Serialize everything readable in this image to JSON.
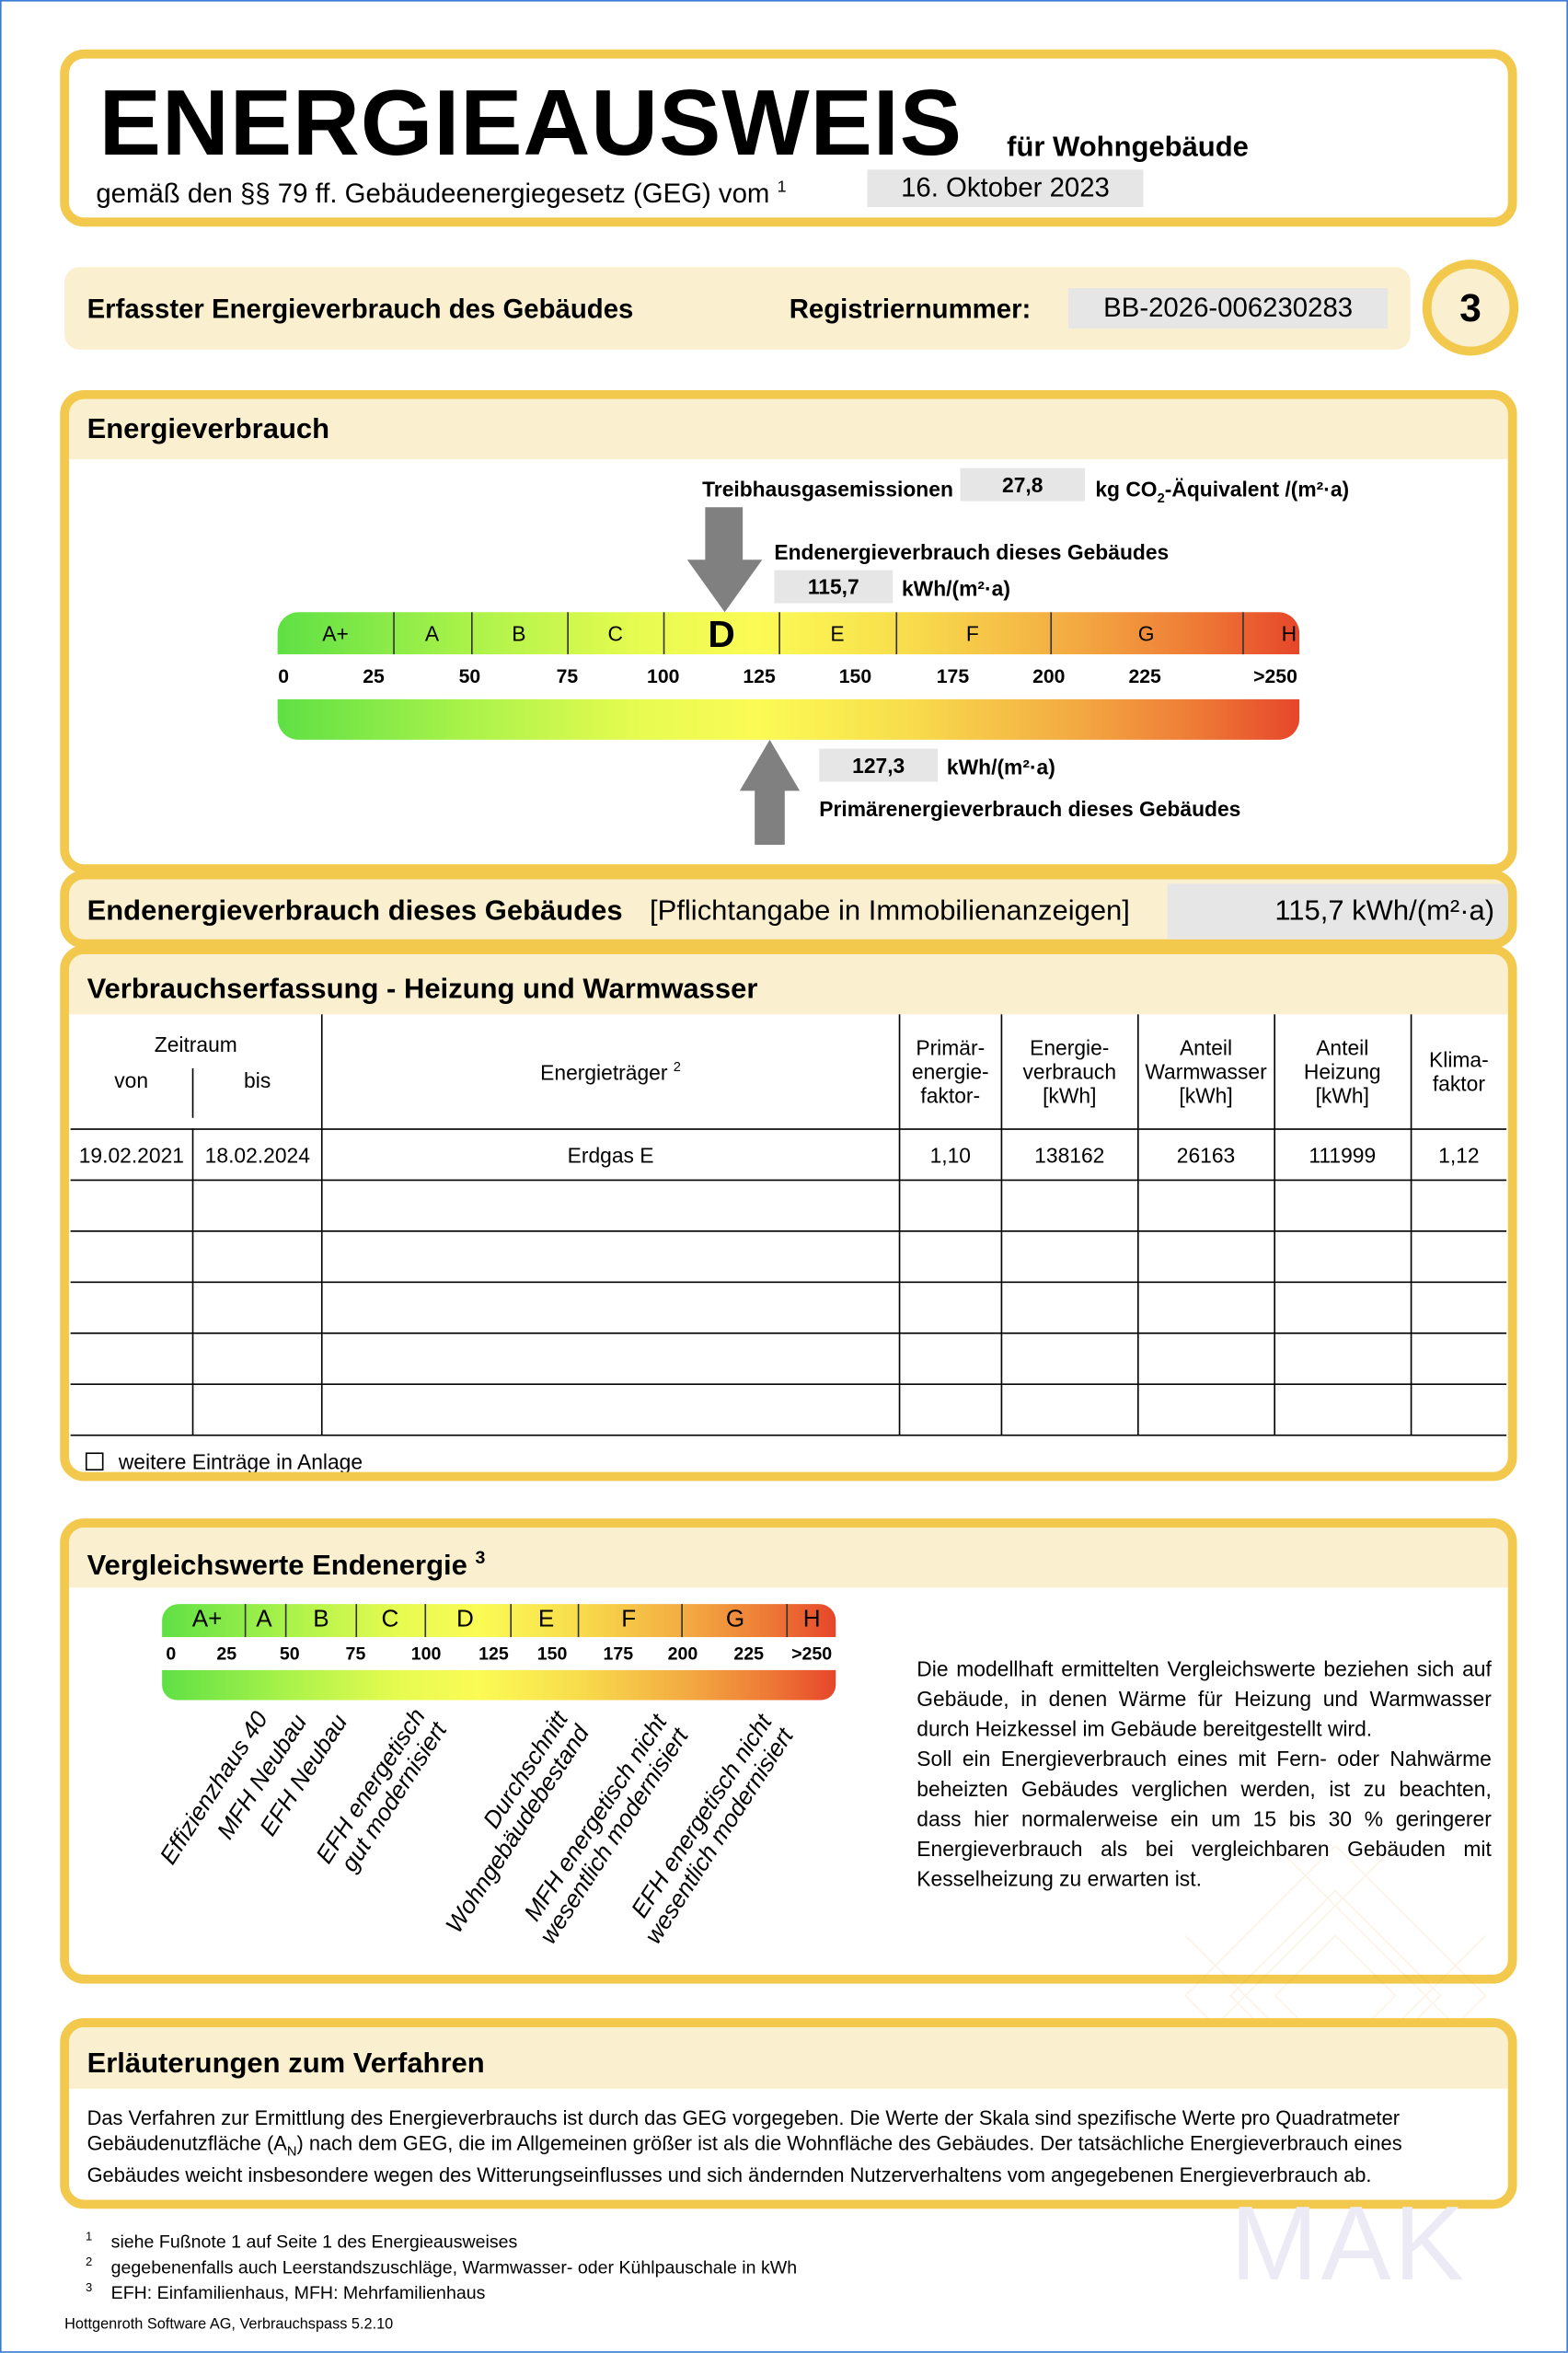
{
  "header": {
    "title": "ENERGIEAUSWEIS",
    "subtitle": "für Wohngebäude",
    "law_text": "gemäß den §§ 79 ff. Gebäudeenergiegesetz (GEG) vom",
    "law_footnote": "1",
    "date": "16. Oktober 2023"
  },
  "info": {
    "label": "Erfasster Energieverbrauch des Gebäudes",
    "reg_label": "Registriernummer:",
    "reg_number": "BB-2026-006230283",
    "page_number": "3"
  },
  "energy": {
    "title": "Energieverbrauch",
    "ghg_label": "Treibhausgasemissionen",
    "ghg_value": "27,8",
    "ghg_unit_pre": "kg CO",
    "ghg_unit_sub": "2",
    "ghg_unit_post": "-Äquivalent /(m²·a)",
    "final_label": "Endenergieverbrauch dieses Gebäudes",
    "final_value": "115,7",
    "final_value_num": 115.7,
    "unit": "kWh/(m²·a)",
    "primary_label": "Primärenergieverbrauch dieses Gebäudes",
    "primary_value": "127,3",
    "primary_value_num": 127.3,
    "classes": [
      "A+",
      "A",
      "B",
      "C",
      "D",
      "E",
      "F",
      "G",
      "H"
    ],
    "current_class": "D",
    "ticks": [
      "0",
      "25",
      "50",
      "75",
      "100",
      "125",
      "150",
      "175",
      "200",
      "225",
      ">250"
    ]
  },
  "mandatory": {
    "label": "Endenergieverbrauch dieses Gebäudes",
    "note": "[Pflichtangabe in Immobilienanzeigen]",
    "value": "115,7 kWh/(m²·a)"
  },
  "consumption": {
    "title": "Verbrauchserfassung - Heizung und Warmwasser",
    "headers": {
      "period": "Zeitraum",
      "from": "von",
      "to": "bis",
      "carrier": "Energieträger",
      "carrier_fn": "2",
      "pef": [
        "Primär-",
        "energie-",
        "faktor-"
      ],
      "consumption": [
        "Energie-",
        "verbrauch",
        "[kWh]"
      ],
      "hot_water": [
        "Anteil",
        "Warmwasser",
        "[kWh]"
      ],
      "heating": [
        "Anteil",
        "Heizung",
        "[kWh]"
      ],
      "climate": [
        "Klima-",
        "faktor"
      ]
    },
    "rows": [
      [
        "19.02.2021",
        "18.02.2024",
        "Erdgas E",
        "1,10",
        "138162",
        "26163",
        "111999",
        "1,12"
      ]
    ],
    "more_entries_label": "weitere Einträge in Anlage",
    "more_entries_checked": false
  },
  "comparison": {
    "title": "Vergleichswerte Endenergie",
    "title_fn": "3",
    "classes": [
      "A+",
      "A",
      "B",
      "C",
      "D",
      "E",
      "F",
      "G",
      "H"
    ],
    "ticks": [
      "0",
      "25",
      "50",
      "75",
      "100",
      "125",
      "150",
      "175",
      "200",
      "225",
      ">250"
    ],
    "labels": [
      [
        "Effizienzhaus 40"
      ],
      [
        "MFH Neubau"
      ],
      [
        "EFH Neubau"
      ],
      [
        "EFH energetisch",
        "gut modernisiert"
      ],
      [
        "Durchschnitt",
        "Wohngebäudebestand"
      ],
      [
        "MFH energetisch nicht",
        "wesentlich modernisiert"
      ],
      [
        "EFH energetisch nicht",
        "wesentlich modernisiert"
      ]
    ],
    "text": "Die modellhaft ermittelten Vergleichswerte beziehen sich auf Gebäude, in denen Wärme für Heizung und Warmwasser durch Heizkessel im Gebäude bereitgestellt wird.",
    "text2": "Soll ein Energieverbrauch eines mit Fern- oder Nahwärme beheizten Gebäudes verglichen werden, ist zu beachten, dass hier normalerweise ein um 15 bis 30 % geringerer Energieverbrauch als bei vergleichbaren Gebäuden mit Kesselheizung zu erwarten ist."
  },
  "explanation": {
    "title": "Erläuterungen zum Verfahren",
    "text_a": "Das Verfahren zur Ermittlung des Energieverbrauchs ist durch das GEG vorgegeben. Die Werte der Skala sind spezifische Werte pro Quadratmeter Gebäudenutzfläche (A",
    "text_sub": "N",
    "text_b": ") nach dem GEG, die im Allgemeinen größer ist als die Wohnfläche des Gebäudes. Der tatsächliche Energieverbrauch eines Gebäudes weicht insbesondere wegen des Witterungseinflusses und sich ändernden Nutzerverhaltens vom angegebenen Energieverbrauch ab."
  },
  "footnotes": [
    {
      "n": "1",
      "text": "siehe Fußnote 1 auf Seite 1 des Energieausweises"
    },
    {
      "n": "2",
      "text": "gegebenenfalls auch Leerstandszuschläge, Warmwasser- oder Kühlpauschale in kWh"
    },
    {
      "n": "3",
      "text": "EFH: Einfamilienhaus, MFH: Mehrfamilienhaus"
    }
  ],
  "software": "Hottgenroth Software AG, Verbrauchspass 5.2.10",
  "watermark": "MAK",
  "colors": {
    "border": "#f2c94c",
    "band": "#faefcf",
    "gray": "#e6e6e6",
    "arrow": "#808080"
  }
}
